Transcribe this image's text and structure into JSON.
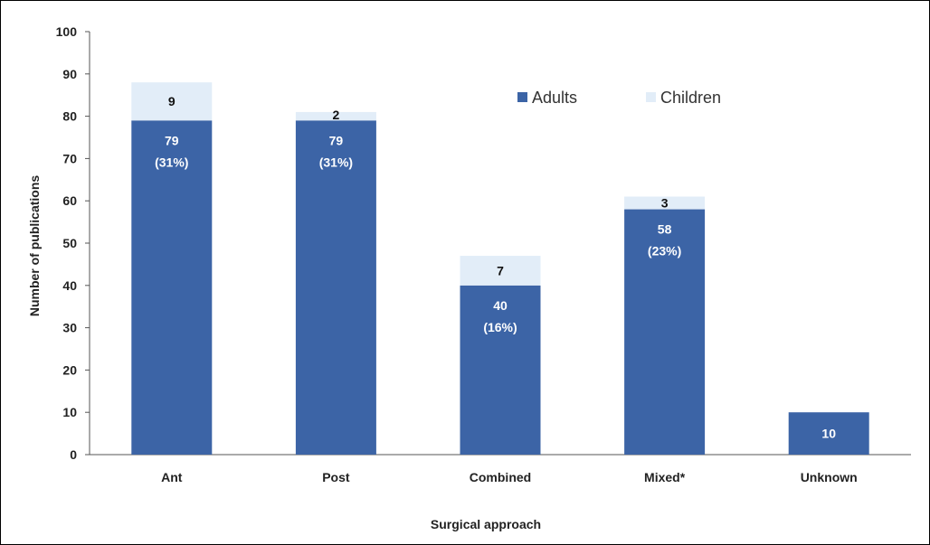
{
  "chart_data": {
    "type": "bar",
    "stacked": true,
    "title": "",
    "xlabel": "Surgical approach",
    "ylabel": "Number of publications",
    "ylim": [
      0,
      100
    ],
    "yticks": [
      0,
      10,
      20,
      30,
      40,
      50,
      60,
      70,
      80,
      90,
      100
    ],
    "grid": false,
    "legend_position": "top-center",
    "categories": [
      "Ant",
      "Post",
      "Combined",
      "Mixed*",
      "Unknown"
    ],
    "series": [
      {
        "name": "Adults",
        "color": "#3c64a6",
        "values": [
          79,
          79,
          40,
          58,
          10
        ],
        "labels": [
          "79",
          "79",
          "40",
          "58",
          "10"
        ],
        "percent_labels": [
          "(31%)",
          "(31%)",
          "(16%)",
          "(23%)",
          ""
        ]
      },
      {
        "name": "Children",
        "color": "#e2edf8",
        "values": [
          9,
          2,
          7,
          3,
          0
        ],
        "labels": [
          "9",
          "2",
          "7",
          "3",
          ""
        ]
      }
    ]
  }
}
